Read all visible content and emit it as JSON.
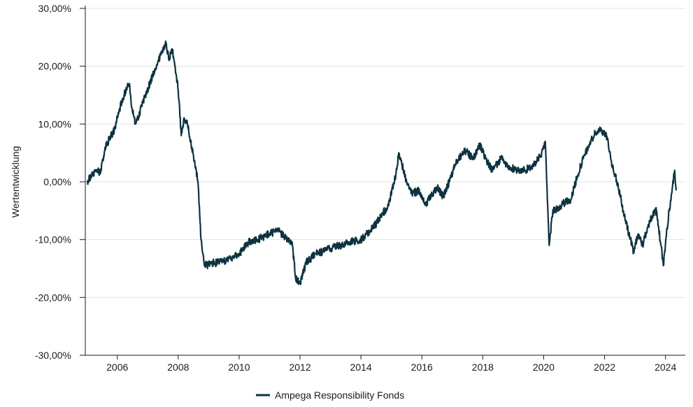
{
  "chart_data": {
    "type": "line",
    "title": "",
    "xlabel": "",
    "ylabel": "Wertentwicklung",
    "y_axis": {
      "ticks": [
        -30,
        -20,
        -10,
        0,
        10,
        20,
        30
      ],
      "tick_labels": [
        "-30,00%",
        "-20,00%",
        "-10,00%",
        "0,00%",
        "10,00%",
        "20,00%",
        "30,00%"
      ],
      "ylim": [
        -30,
        30
      ]
    },
    "x_axis": {
      "ticks": [
        2006,
        2008,
        2010,
        2012,
        2014,
        2016,
        2018,
        2020,
        2022,
        2024
      ],
      "tick_labels": [
        "2006",
        "2008",
        "2010",
        "2012",
        "2014",
        "2016",
        "2018",
        "2020",
        "2022",
        "2024"
      ],
      "xlim": [
        2004.95,
        2024.65
      ]
    },
    "grid": "horizontal",
    "legend_position": "bottom-center",
    "colors": {
      "line": "#0d3340",
      "grid": "#e3e3e3",
      "axis": "#1a1a1a"
    },
    "series": [
      {
        "name": "Ampega Responsibility Fonds",
        "x": [
          2005.0,
          2005.15,
          2005.3,
          2005.45,
          2005.6,
          2005.75,
          2005.9,
          2006.0,
          2006.15,
          2006.3,
          2006.4,
          2006.45,
          2006.6,
          2006.8,
          2007.0,
          2007.2,
          2007.35,
          2007.5,
          2007.6,
          2007.7,
          2007.8,
          2007.9,
          2008.0,
          2008.1,
          2008.2,
          2008.3,
          2008.45,
          2008.55,
          2008.65,
          2008.75,
          2008.85,
          2008.95,
          2009.1,
          2009.3,
          2009.6,
          2010.0,
          2010.3,
          2010.6,
          2011.0,
          2011.3,
          2011.5,
          2011.6,
          2011.75,
          2011.85,
          2012.0,
          2012.2,
          2012.5,
          2012.8,
          2013.0,
          2013.3,
          2013.6,
          2014.0,
          2014.3,
          2014.6,
          2014.9,
          2015.1,
          2015.25,
          2015.35,
          2015.5,
          2015.7,
          2015.9,
          2016.1,
          2016.3,
          2016.5,
          2016.7,
          2016.9,
          2017.1,
          2017.4,
          2017.7,
          2017.9,
          2018.1,
          2018.3,
          2018.6,
          2018.9,
          2019.1,
          2019.4,
          2019.7,
          2019.9,
          2020.05,
          2020.12,
          2020.18,
          2020.3,
          2020.5,
          2020.7,
          2020.9,
          2021.1,
          2021.3,
          2021.5,
          2021.7,
          2021.9,
          2022.1,
          2022.2,
          2022.35,
          2022.5,
          2022.65,
          2022.8,
          2022.95,
          2023.1,
          2023.25,
          2023.4,
          2023.55,
          2023.7,
          2023.85,
          2023.93,
          2024.05,
          2024.2,
          2024.3,
          2024.35
        ],
        "values": [
          0,
          1,
          2,
          1.5,
          6,
          7.5,
          9,
          11,
          14,
          16,
          17,
          14,
          10,
          13,
          16,
          19,
          21,
          23,
          24,
          21,
          23,
          20,
          16,
          8,
          11,
          10,
          6,
          3,
          0,
          -10,
          -14,
          -14.5,
          -14,
          -14,
          -13.5,
          -12.5,
          -10.5,
          -10,
          -9,
          -8.5,
          -9.5,
          -10,
          -11,
          -16.5,
          -17.5,
          -14,
          -12.5,
          -12,
          -11.5,
          -11,
          -10.5,
          -10,
          -8.5,
          -6.5,
          -4,
          0,
          5,
          3,
          0,
          -2,
          -1.5,
          -4,
          -2.5,
          -1,
          -2.5,
          0,
          3,
          5.5,
          4,
          6.5,
          4,
          2,
          4,
          2.5,
          2,
          2,
          3,
          4.5,
          7,
          -3,
          -11,
          -5,
          -4.5,
          -3.5,
          -3,
          1,
          4,
          6.5,
          8.5,
          9,
          7.5,
          4,
          1,
          -2,
          -6,
          -9,
          -12,
          -9,
          -11,
          -8,
          -6,
          -5,
          -11,
          -14.5,
          -8,
          -2,
          2,
          -1.5
        ]
      }
    ]
  }
}
